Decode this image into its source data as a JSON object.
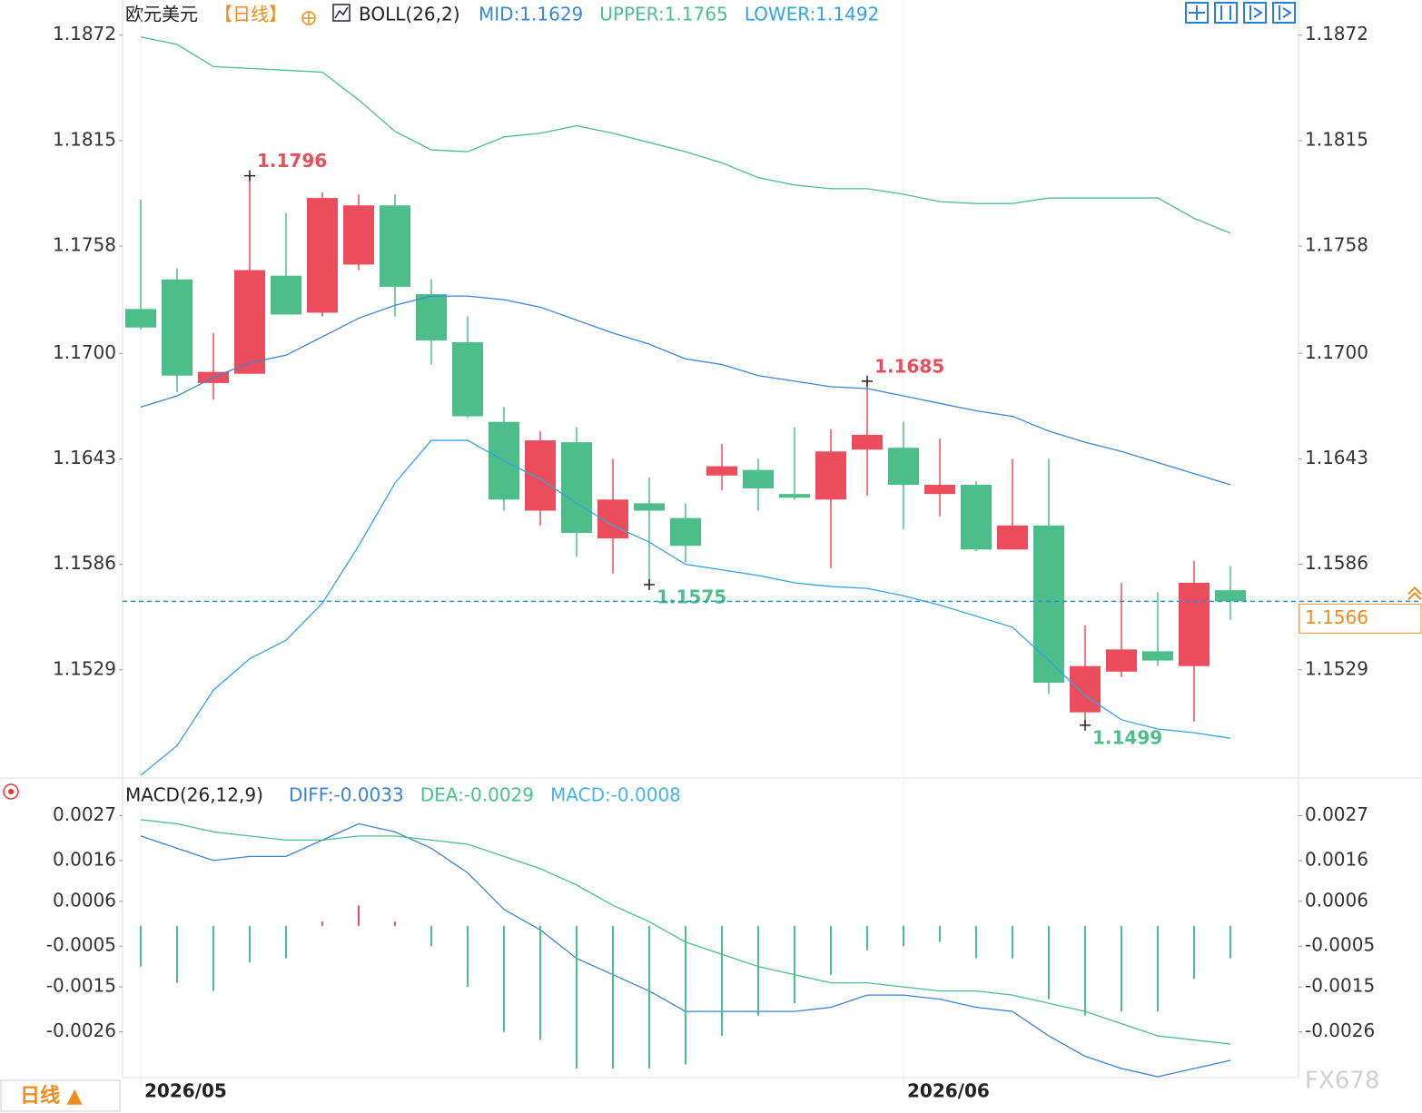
{
  "chart_data": [
    {
      "type": "candlestick",
      "title": "欧元美元",
      "period": "【日线】",
      "indicator": "BOLL(26,2)",
      "categories": [
        "2026/05",
        null,
        null,
        null,
        null,
        null,
        null,
        null,
        null,
        null,
        null,
        null,
        null,
        null,
        null,
        null,
        null,
        null,
        null,
        null,
        null,
        "2026/06",
        null,
        null,
        null,
        null,
        null,
        null,
        null,
        null,
        null
      ],
      "open": [
        1.1724,
        1.174,
        1.1684,
        1.1689,
        1.1742,
        1.1722,
        1.1748,
        1.178,
        1.1732,
        1.1706,
        1.1663,
        1.1615,
        1.1652,
        1.16,
        1.1619,
        1.1611,
        1.1634,
        1.1637,
        1.1624,
        1.1621,
        1.1648,
        1.1649,
        1.1624,
        1.1629,
        1.1594,
        1.1607,
        1.1506,
        1.1528,
        1.1539,
        1.1531,
        1.1572
      ],
      "high": [
        1.1783,
        1.1746,
        1.1711,
        1.1796,
        1.1776,
        1.1787,
        1.1786,
        1.1786,
        1.174,
        1.172,
        1.1671,
        1.1658,
        1.166,
        1.1643,
        1.1633,
        1.1619,
        1.1651,
        1.1643,
        1.166,
        1.1659,
        1.1685,
        1.1663,
        1.1654,
        1.1631,
        1.1643,
        1.1643,
        1.1553,
        1.1576,
        1.1571,
        1.1588,
        1.1585
      ],
      "low": [
        1.1713,
        1.1679,
        1.1675,
        1.1689,
        1.1721,
        1.172,
        1.1745,
        1.172,
        1.1694,
        1.1665,
        1.1615,
        1.1607,
        1.159,
        1.1581,
        1.1575,
        1.1587,
        1.1626,
        1.1615,
        1.1621,
        1.1584,
        1.1623,
        1.1605,
        1.1612,
        1.1593,
        1.1594,
        1.1516,
        1.1499,
        1.1525,
        1.1531,
        1.1501,
        1.1556
      ],
      "close": [
        1.1714,
        1.1688,
        1.169,
        1.1745,
        1.1721,
        1.1784,
        1.178,
        1.1736,
        1.1707,
        1.1666,
        1.1621,
        1.1653,
        1.1603,
        1.1621,
        1.1615,
        1.1596,
        1.1639,
        1.1627,
        1.1622,
        1.1647,
        1.1656,
        1.1629,
        1.1629,
        1.1594,
        1.1607,
        1.1522,
        1.1531,
        1.154,
        1.1534,
        1.1576,
        1.1566
      ],
      "up_color": "#eb4d5c",
      "down_color": "#4dbd8a",
      "series": [
        {
          "name": "MID:1.1629",
          "color": "#3a86d8",
          "values": [
            1.1671,
            1.1677,
            1.1687,
            1.1695,
            1.1699,
            1.1709,
            1.1719,
            1.1726,
            1.1731,
            1.1731,
            1.1729,
            1.1725,
            1.1718,
            1.1711,
            1.1705,
            1.1697,
            1.1694,
            1.1688,
            1.1685,
            1.1682,
            1.1681,
            1.1677,
            1.1673,
            1.1669,
            1.1666,
            1.1658,
            1.1652,
            1.1647,
            1.1641,
            1.1635,
            1.1629
          ]
        },
        {
          "name": "UPPER:1.1765",
          "color": "#4cbf8a",
          "values": [
            1.1871,
            1.1867,
            1.1855,
            1.1854,
            1.1853,
            1.1852,
            1.1837,
            1.182,
            1.181,
            1.1809,
            1.1817,
            1.1819,
            1.1823,
            1.1819,
            1.1814,
            1.1809,
            1.1803,
            1.1795,
            1.1791,
            1.1789,
            1.1789,
            1.1786,
            1.1782,
            1.1781,
            1.1781,
            1.1784,
            1.1784,
            1.1784,
            1.1784,
            1.1773,
            1.1765
          ]
        },
        {
          "name": "LOWER:1.1492",
          "color": "#34a3e3",
          "values": [
            1.1472,
            1.1488,
            1.1518,
            1.1535,
            1.1545,
            1.1565,
            1.1596,
            1.163,
            1.1653,
            1.1653,
            1.1642,
            1.1632,
            1.1619,
            1.1607,
            1.1598,
            1.1586,
            1.1583,
            1.158,
            1.1576,
            1.1574,
            1.1573,
            1.1569,
            1.1564,
            1.1558,
            1.1552,
            1.1534,
            1.1515,
            1.1502,
            1.1497,
            1.1495,
            1.1492
          ]
        }
      ],
      "ylim": [
        1.1471,
        1.1891
      ],
      "yticks": [
        1.1872,
        1.1815,
        1.1758,
        {
          "value": 1.17,
          "label": "1.1700"
        },
        1.1643,
        1.1586,
        1.1529
      ],
      "annotations": [
        {
          "text": "1.1796",
          "x": 3,
          "y": 1.1796,
          "color": "#eb4d5c"
        },
        {
          "text": "1.1685",
          "x": 20,
          "y": 1.1685,
          "color": "#eb4d5c"
        },
        {
          "text": "1.1575",
          "x": 14,
          "y": 1.1575,
          "color": "#4dbd8a"
        },
        {
          "text": "1.1499",
          "x": 26,
          "y": 1.1499,
          "color": "#4dbd8a"
        }
      ],
      "last_price": 1.1566,
      "last_price_color": "#f08c1e",
      "last_line_color": "#2a8ee0"
    },
    {
      "type": "macd",
      "title": "MACD(26,12,9)",
      "series": [
        {
          "name": "DIFF:-0.0033",
          "color": "#3b82d6",
          "values": [
            0.0022,
            0.0019,
            0.0016,
            0.0017,
            0.0017,
            0.0021,
            0.0025,
            0.0023,
            0.0019,
            0.0013,
            0.0004,
            -0.0001,
            -0.0008,
            -0.0012,
            -0.0016,
            -0.0021,
            -0.0021,
            -0.0021,
            -0.0021,
            -0.002,
            -0.0017,
            -0.0017,
            -0.0018,
            -0.002,
            -0.0021,
            -0.0027,
            -0.0032,
            -0.0035,
            -0.0037,
            -0.0035,
            -0.0033
          ]
        },
        {
          "name": "DEA:-0.0029",
          "color": "#4cbf8a",
          "values": [
            0.0026,
            0.0025,
            0.0023,
            0.0022,
            0.0021,
            0.0021,
            0.0022,
            0.0022,
            0.0021,
            0.002,
            0.0017,
            0.0014,
            0.001,
            0.0005,
            0.0001,
            -0.0004,
            -0.0007,
            -0.001,
            -0.0012,
            -0.0014,
            -0.0014,
            -0.0015,
            -0.0016,
            -0.0016,
            -0.0017,
            -0.0019,
            -0.0021,
            -0.0024,
            -0.0027,
            -0.0028,
            -0.0029
          ]
        },
        {
          "name": "MACD:-0.0008",
          "color": "#47b3e6",
          "kind": "bar",
          "up_color": "#eb4d5c",
          "down_color": "#4dbd8a",
          "values": [
            -0.001,
            -0.0014,
            -0.0016,
            -0.0009,
            -0.0008,
            0.0001,
            0.0005,
            0.0001,
            -0.0005,
            -0.0015,
            -0.0026,
            -0.0028,
            -0.0035,
            -0.0035,
            -0.0035,
            -0.0034,
            -0.0027,
            -0.0022,
            -0.0019,
            -0.0012,
            -0.0006,
            -0.0005,
            -0.0004,
            -0.0008,
            -0.0008,
            -0.0018,
            -0.0022,
            -0.0021,
            -0.0021,
            -0.0013,
            -0.0008
          ]
        }
      ],
      "ylim": [
        -0.0037,
        0.0036
      ],
      "yticks": [
        0.0027,
        0.0016,
        0.0006,
        -0.0005,
        -0.0015,
        -0.0026
      ]
    }
  ],
  "ui": {
    "period_button": "日线 ▲",
    "watermark": "FX678"
  }
}
